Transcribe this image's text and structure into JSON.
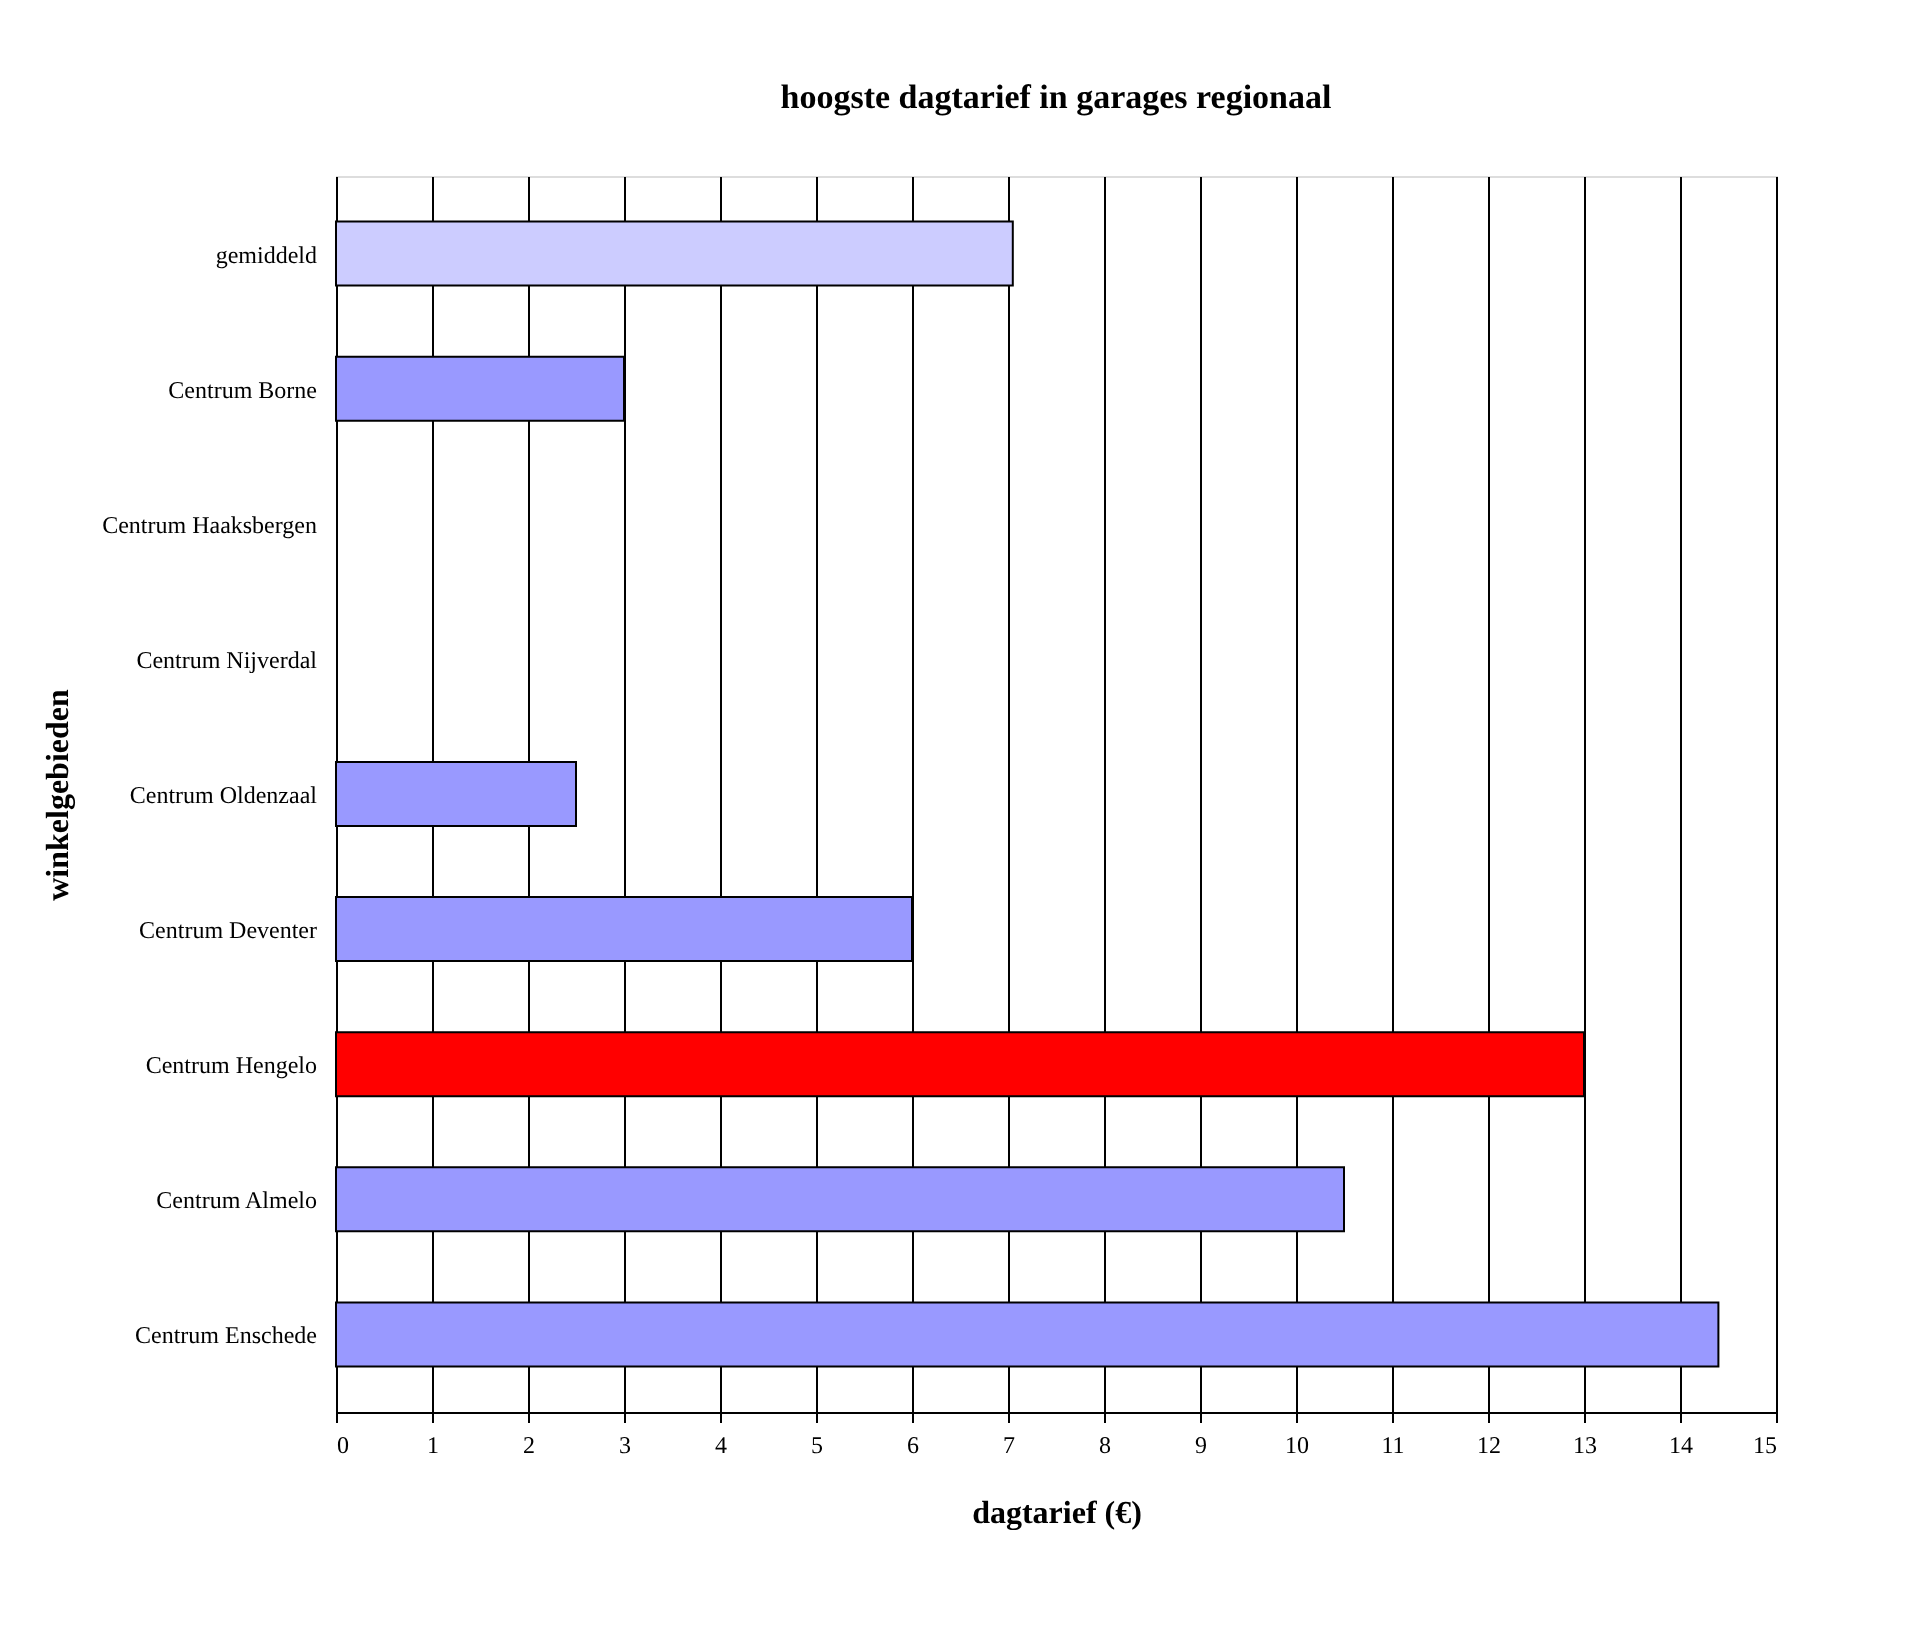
{
  "chart_data": {
    "type": "bar",
    "orientation": "horizontal",
    "title": "hoogste dagtarief in garages regionaal",
    "xlabel": "dagtarief (€)",
    "ylabel": "winkelgebieden",
    "categories": [
      "gemiddeld",
      "Centrum Borne",
      "Centrum Haaksbergen",
      "Centrum Nijverdal",
      "Centrum Oldenzaal",
      "Centrum Deventer",
      "Centrum Hengelo",
      "Centrum Almelo",
      "Centrum Enschede"
    ],
    "values": [
      7.05,
      3,
      null,
      null,
      2.5,
      6,
      13,
      10.5,
      14.4
    ],
    "colors": [
      "#ccccff",
      "#9999ff",
      "#9999ff",
      "#9999ff",
      "#9999ff",
      "#9999ff",
      "#ff0000",
      "#9999ff",
      "#9999ff"
    ],
    "xlim": [
      0,
      15
    ],
    "xticks": [
      0,
      1,
      2,
      3,
      4,
      5,
      6,
      7,
      8,
      9,
      10,
      11,
      12,
      13,
      14,
      15
    ],
    "grid": "x",
    "legend": false
  }
}
